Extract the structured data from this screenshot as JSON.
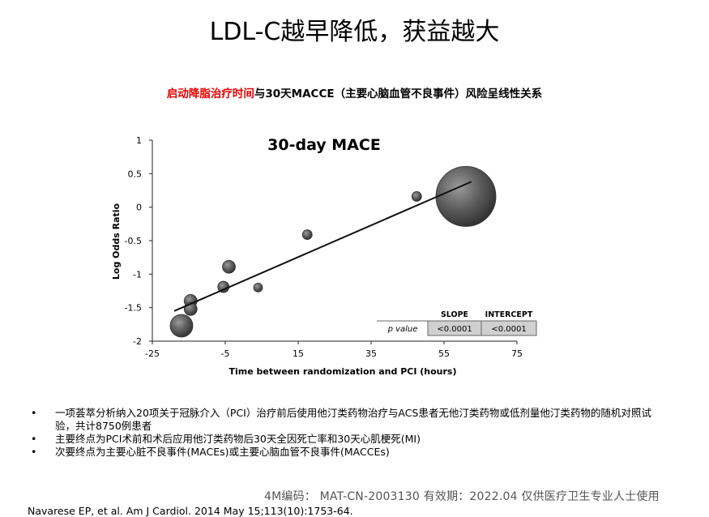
{
  "page": {
    "title": "LDL-C越早降低，获益越大",
    "subtitle_red": "启动降脂治疗时间",
    "subtitle_rest": "与30天MACCE（主要心脑血管不良事件）风险呈线性关系",
    "bullets": [
      "一项荟萃分析纳入20项关于冠脉介入（PCI）治疗前后使用他汀类药物治疗与ACS患者无他汀类药物或低剂量他汀类药物的随机对照试验，共计8750例患者",
      "主要终点为PCI术前和术后应用他汀类药物后30天全因死亡率和30天心肌梗死(MI)",
      "次要终点为主要心脏不良事件(MACEs)或主要心脑血管不良事件(MACCEs)"
    ],
    "footer_code": "4M编码：  MAT-CN-2003130   有效期：2022.04   仅供医疗卫生专业人士使用",
    "citation": "Navarese EP, et al. Am J Cardiol. 2014 May 15;113(10):1753-64."
  },
  "chart_data": {
    "type": "scatter",
    "title": "30-day MACE",
    "xlabel": "Time between randomization and PCI (hours)",
    "ylabel": "Log Odds Ratio",
    "xlim": [
      -25,
      75
    ],
    "ylim": [
      -2,
      1
    ],
    "xticks": [
      -25,
      -5,
      15,
      35,
      55,
      75
    ],
    "yticks": [
      1,
      0.5,
      0,
      -0.5,
      -1,
      -1.5,
      -2
    ],
    "ytick_labels": [
      "1",
      "0.5",
      "0",
      "-0.5",
      "-1",
      "-1.5",
      "-2"
    ],
    "grid": false,
    "points": [
      {
        "x": -17,
        "y": -1.77,
        "weight": 14
      },
      {
        "x": -14.5,
        "y": -1.4,
        "weight": 8
      },
      {
        "x": -14.5,
        "y": -1.52,
        "weight": 8
      },
      {
        "x": -5.5,
        "y": -1.19,
        "weight": 7
      },
      {
        "x": -4,
        "y": -0.89,
        "weight": 8
      },
      {
        "x": 4,
        "y": -1.2,
        "weight": 5.5
      },
      {
        "x": 17.5,
        "y": -0.41,
        "weight": 6
      },
      {
        "x": 47.5,
        "y": 0.16,
        "weight": 6
      },
      {
        "x": 61,
        "y": 0.16,
        "weight": 37
      }
    ],
    "trendline": {
      "x1": -19,
      "y1": -1.55,
      "x2": 62.5,
      "y2": 0.38
    },
    "table": {
      "col_headers": [
        "SLOPE",
        "INTERCEPT"
      ],
      "row_label": "p value",
      "values": [
        "<0.0001",
        "<0.0001"
      ]
    },
    "colors": {
      "bubble": "#4a4a4a",
      "bubble_light": "#8a8a8a",
      "line": "#111111",
      "table_cell": "#d0d0d0"
    }
  }
}
